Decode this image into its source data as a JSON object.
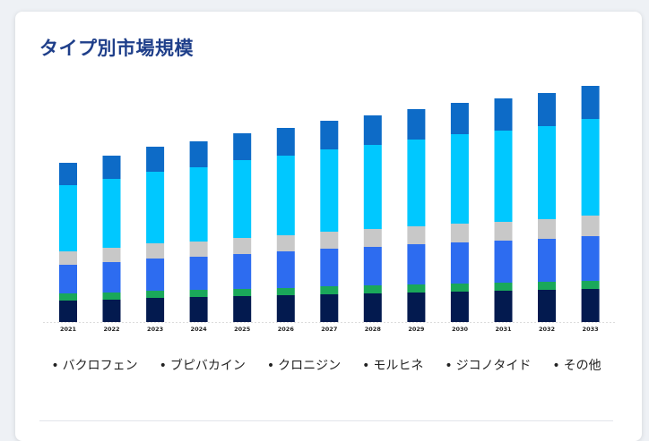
{
  "card": {
    "title": "タイプ別市場規模"
  },
  "legend": {
    "bullet": "•",
    "items": [
      "バクロフェン",
      "ブピバカイン",
      "クロニジン",
      "モルヒネ",
      "ジコノタイド",
      "その他"
    ]
  },
  "colors": {
    "title": "#1f3f8a",
    "series": [
      "#031a4f",
      "#1aa85a",
      "#2d6cf0",
      "#c8c8c8",
      "#00c8ff",
      "#0d6bc7"
    ]
  },
  "chart_data": {
    "type": "bar",
    "stacked": true,
    "categories": [
      "2021",
      "2022",
      "2023",
      "2024",
      "2025",
      "2026",
      "2027",
      "2028",
      "2029",
      "2030",
      "2031",
      "2032",
      "2033"
    ],
    "series": [
      {
        "values": [
          24,
          25,
          27,
          28,
          29,
          30,
          31,
          32,
          33,
          34,
          35,
          36,
          37
        ]
      },
      {
        "values": [
          8,
          8,
          8,
          8,
          8,
          8,
          9,
          9,
          9,
          9,
          9,
          9,
          9
        ]
      },
      {
        "values": [
          32,
          34,
          36,
          37,
          39,
          41,
          42,
          43,
          45,
          46,
          47,
          48,
          50
        ]
      },
      {
        "values": [
          15,
          16,
          17,
          17,
          18,
          18,
          19,
          20,
          20,
          21,
          21,
          22,
          23
        ]
      },
      {
        "values": [
          74,
          77,
          80,
          83,
          87,
          89,
          92,
          94,
          97,
          100,
          102,
          104,
          108
        ]
      },
      {
        "values": [
          25,
          26,
          28,
          29,
          30,
          31,
          32,
          33,
          34,
          35,
          36,
          37,
          37
        ]
      }
    ],
    "ylim": [
      0,
      270
    ]
  }
}
